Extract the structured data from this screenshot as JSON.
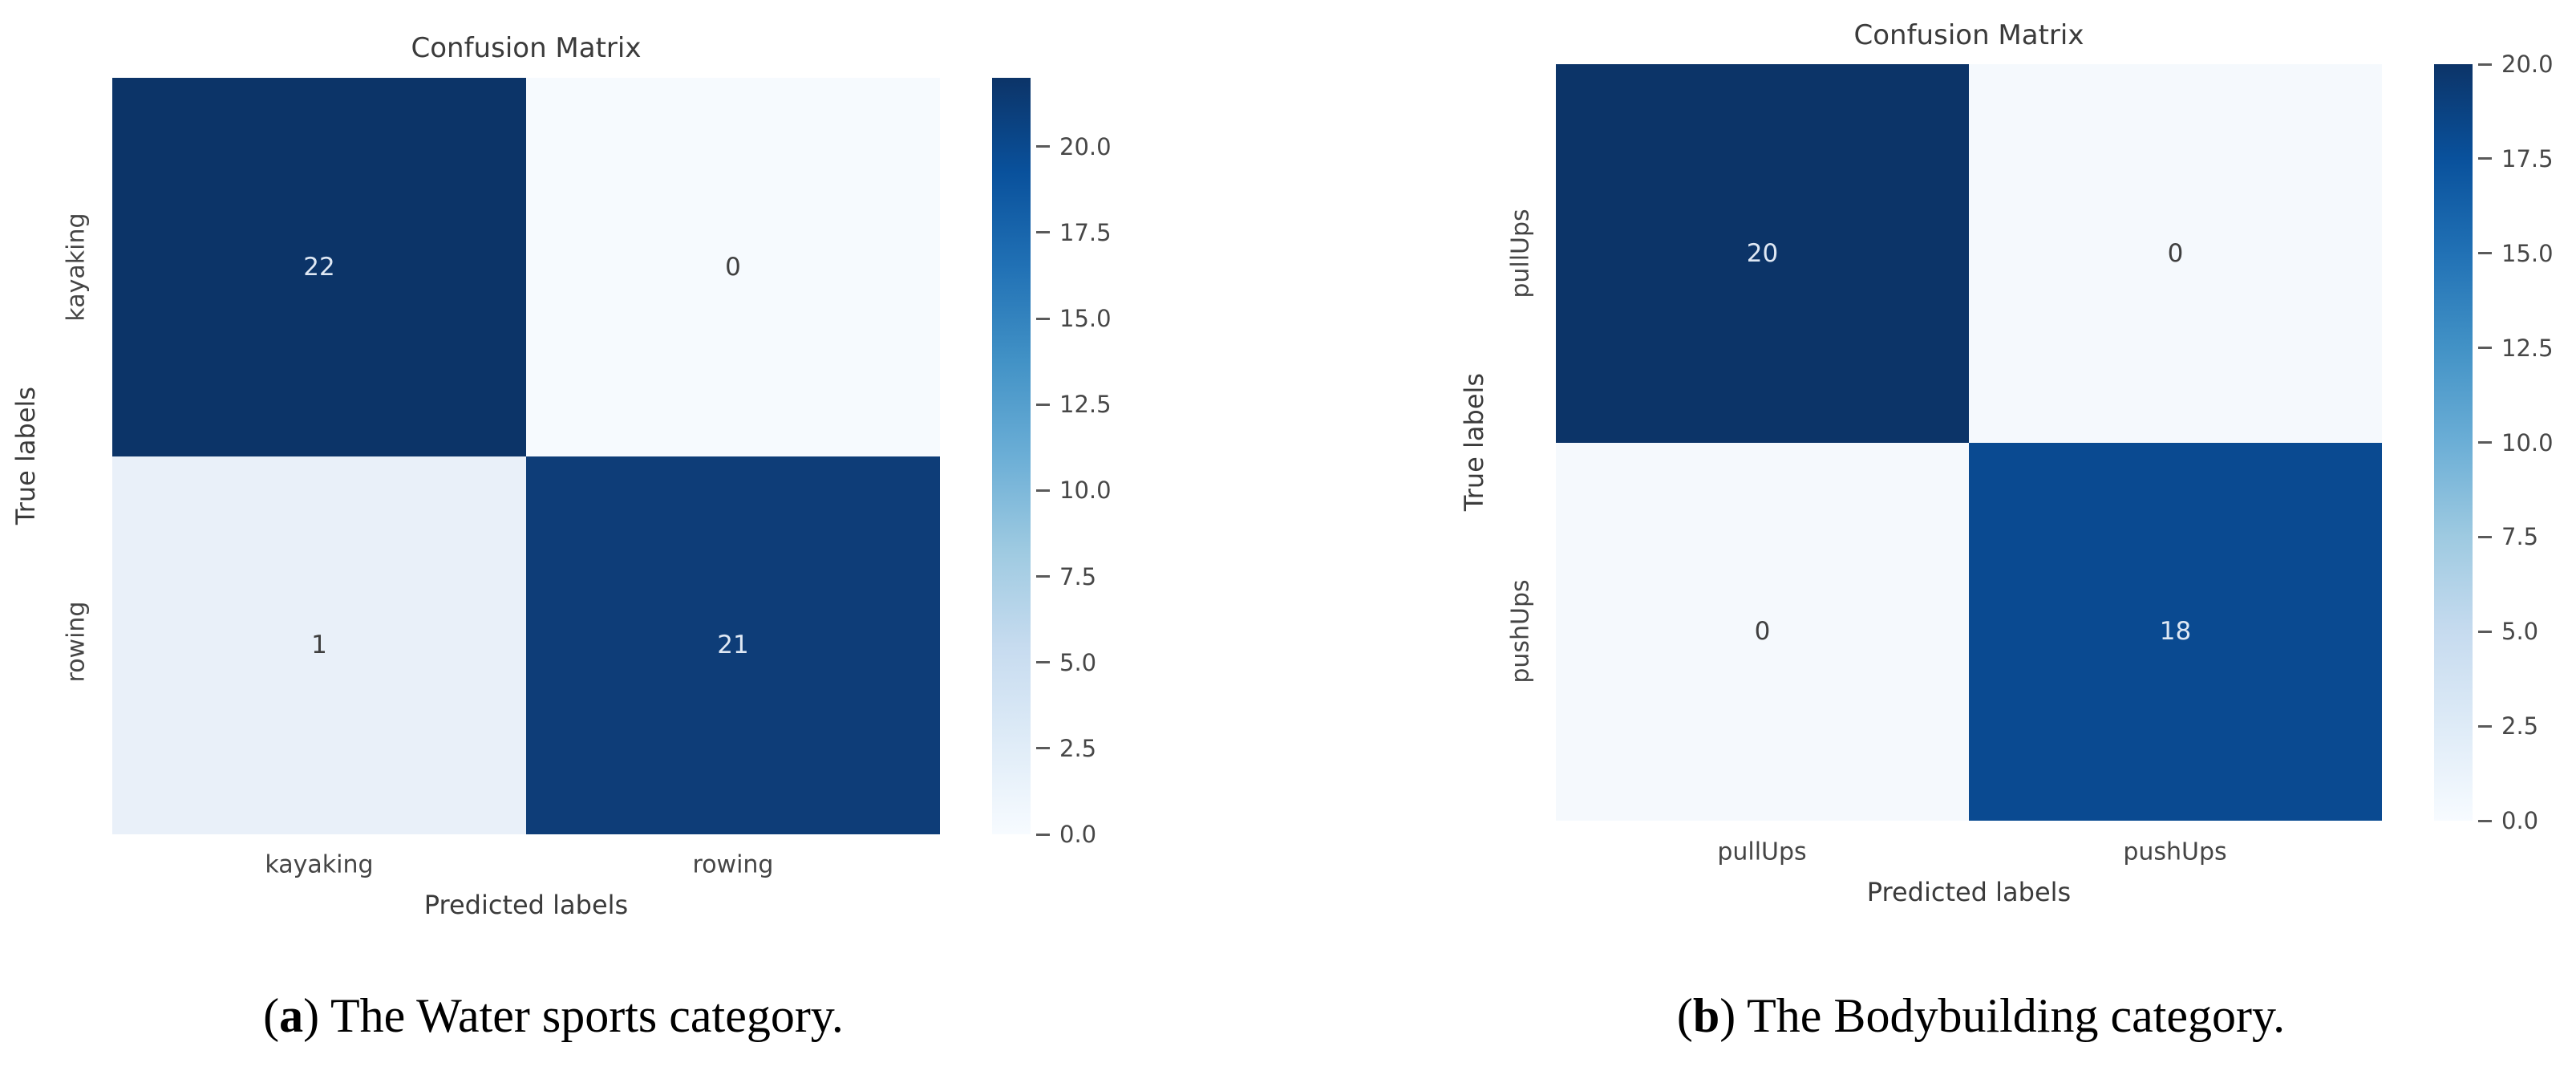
{
  "figures": [
    {
      "title": "Confusion Matrix",
      "x_axis_label": "Predicted labels",
      "y_axis_label": "True labels",
      "x_tick_labels": [
        "kayaking",
        "rowing"
      ],
      "y_tick_labels": [
        "kayaking",
        "rowing"
      ],
      "cell_colors": [
        [
          "#0c3468",
          "#f6fafe"
        ],
        [
          "#e9f0f9",
          "#0e3d78"
        ]
      ],
      "caption": {
        "open": "(",
        "letter": "a",
        "rest": ") The Water sports category."
      }
    },
    {
      "title": "Confusion Matrix",
      "x_axis_label": "Predicted labels",
      "y_axis_label": "True labels",
      "x_tick_labels": [
        "pullUps",
        "pushUps"
      ],
      "y_tick_labels": [
        "pullUps",
        "pushUps"
      ],
      "cell_colors": [
        [
          "#0c3468",
          "#f5f9fd"
        ],
        [
          "#f5f9fd",
          "#0a4a91"
        ]
      ],
      "caption": {
        "open": "(",
        "letter": "b",
        "rest": ") The Bodybuilding category."
      }
    }
  ],
  "chart_data": [
    {
      "type": "heatmap",
      "title": "Confusion Matrix",
      "xlabel": "Predicted labels",
      "ylabel": "True labels",
      "x_categories": [
        "kayaking",
        "rowing"
      ],
      "y_categories": [
        "kayaking",
        "rowing"
      ],
      "values": [
        [
          22,
          0
        ],
        [
          1,
          21
        ]
      ],
      "vmin": 0,
      "vmax": 22,
      "colorbar_ticks": [
        20.0,
        17.5,
        15.0,
        12.5,
        10.0,
        7.5,
        5.0,
        2.5,
        0.0
      ],
      "colormap": "Blues",
      "colormap_colors": [
        "#f7fbff",
        "#deebf7",
        "#c6dbef",
        "#9ecae1",
        "#6baed6",
        "#4292c6",
        "#2171b5",
        "#09519c",
        "#0c3468"
      ],
      "legend_position": "right-colorbar",
      "grid": false,
      "caption": "(a) The Water sports category."
    },
    {
      "type": "heatmap",
      "title": "Confusion Matrix",
      "xlabel": "Predicted labels",
      "ylabel": "True labels",
      "x_categories": [
        "pullUps",
        "pushUps"
      ],
      "y_categories": [
        "pullUps",
        "pushUps"
      ],
      "values": [
        [
          20,
          0
        ],
        [
          0,
          18
        ]
      ],
      "vmin": 0,
      "vmax": 20,
      "colorbar_ticks": [
        20.0,
        17.5,
        15.0,
        12.5,
        10.0,
        7.5,
        5.0,
        2.5,
        0.0
      ],
      "colormap": "Blues",
      "colormap_colors": [
        "#f7fbff",
        "#deebf7",
        "#c6dbef",
        "#9ecae1",
        "#6baed6",
        "#4292c6",
        "#2171b5",
        "#09519c",
        "#0c3468"
      ],
      "legend_position": "right-colorbar",
      "grid": false,
      "caption": "(b) The Bodybuilding category."
    }
  ]
}
